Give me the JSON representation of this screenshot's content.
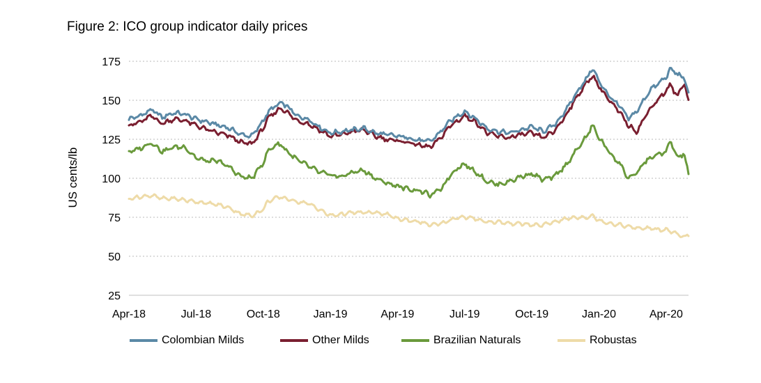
{
  "title": "Figure 2: ICO group indicator daily prices",
  "chart_data": {
    "type": "line",
    "ylabel": "US cents/lb",
    "ylim": [
      25,
      175
    ],
    "yticks": [
      25,
      50,
      75,
      100,
      125,
      150,
      175
    ],
    "xlim": [
      0,
      25
    ],
    "x_unit": "months since Apr-18",
    "xticks": [
      {
        "label": "Apr-18",
        "x": 0
      },
      {
        "label": "Jul-18",
        "x": 3
      },
      {
        "label": "Oct-18",
        "x": 6
      },
      {
        "label": "Jan-19",
        "x": 9
      },
      {
        "label": "Apr-19",
        "x": 12
      },
      {
        "label": "Jul-19",
        "x": 15
      },
      {
        "label": "Oct-19",
        "x": 18
      },
      {
        "label": "Jan-20",
        "x": 21
      },
      {
        "label": "Apr-20",
        "x": 24
      }
    ],
    "grid": true,
    "legend_position": "bottom",
    "series": [
      {
        "name": "Colombian Milds",
        "color": "#5b89a6",
        "points": [
          [
            0,
            138
          ],
          [
            0.5,
            140
          ],
          [
            1,
            144
          ],
          [
            1.5,
            139
          ],
          [
            2,
            142
          ],
          [
            2.5,
            141
          ],
          [
            3,
            138
          ],
          [
            3.5,
            136
          ],
          [
            4,
            134
          ],
          [
            4.5,
            132
          ],
          [
            5,
            128
          ],
          [
            5.5,
            127
          ],
          [
            6,
            137
          ],
          [
            6.2,
            142
          ],
          [
            6.5,
            146
          ],
          [
            6.8,
            148
          ],
          [
            7,
            147
          ],
          [
            7.5,
            140
          ],
          [
            8,
            138
          ],
          [
            8.5,
            133
          ],
          [
            9,
            129
          ],
          [
            9.5,
            130
          ],
          [
            10,
            131
          ],
          [
            10.5,
            132
          ],
          [
            11,
            129
          ],
          [
            11.5,
            128
          ],
          [
            12,
            127
          ],
          [
            12.5,
            126
          ],
          [
            13,
            124
          ],
          [
            13.5,
            124
          ],
          [
            14,
            131
          ],
          [
            14.3,
            136
          ],
          [
            14.7,
            140
          ],
          [
            15,
            143
          ],
          [
            15.5,
            138
          ],
          [
            16,
            132
          ],
          [
            16.5,
            130
          ],
          [
            17,
            129
          ],
          [
            17.5,
            131
          ],
          [
            18,
            133
          ],
          [
            18.5,
            130
          ],
          [
            19,
            134
          ],
          [
            19.5,
            143
          ],
          [
            20,
            155
          ],
          [
            20.5,
            165
          ],
          [
            20.7,
            171
          ],
          [
            21,
            162
          ],
          [
            21.5,
            152
          ],
          [
            22,
            145
          ],
          [
            22.3,
            138
          ],
          [
            22.7,
            143
          ],
          [
            23,
            150
          ],
          [
            23.3,
            157
          ],
          [
            23.6,
            160
          ],
          [
            24,
            165
          ],
          [
            24.2,
            170
          ],
          [
            24.5,
            167
          ],
          [
            24.8,
            164
          ],
          [
            25,
            155
          ]
        ]
      },
      {
        "name": "Other Milds",
        "color": "#7a1f30",
        "points": [
          [
            0,
            134
          ],
          [
            0.5,
            136
          ],
          [
            1,
            140
          ],
          [
            1.5,
            135
          ],
          [
            2,
            138
          ],
          [
            2.5,
            137
          ],
          [
            3,
            134
          ],
          [
            3.5,
            131
          ],
          [
            4,
            129
          ],
          [
            4.5,
            127
          ],
          [
            5,
            123
          ],
          [
            5.5,
            122
          ],
          [
            6,
            132
          ],
          [
            6.2,
            138
          ],
          [
            6.5,
            142
          ],
          [
            6.8,
            145
          ],
          [
            7,
            143
          ],
          [
            7.5,
            137
          ],
          [
            8,
            135
          ],
          [
            8.5,
            131
          ],
          [
            9,
            127
          ],
          [
            9.5,
            128
          ],
          [
            10,
            130
          ],
          [
            10.5,
            131
          ],
          [
            11,
            127
          ],
          [
            11.5,
            125
          ],
          [
            12,
            124
          ],
          [
            12.5,
            123
          ],
          [
            13,
            121
          ],
          [
            13.5,
            120
          ],
          [
            14,
            127
          ],
          [
            14.3,
            133
          ],
          [
            14.7,
            137
          ],
          [
            15,
            140
          ],
          [
            15.5,
            136
          ],
          [
            16,
            129
          ],
          [
            16.5,
            127
          ],
          [
            17,
            126
          ],
          [
            17.5,
            128
          ],
          [
            18,
            129
          ],
          [
            18.5,
            126
          ],
          [
            19,
            130
          ],
          [
            19.5,
            140
          ],
          [
            20,
            152
          ],
          [
            20.5,
            162
          ],
          [
            20.7,
            166
          ],
          [
            21,
            159
          ],
          [
            21.5,
            149
          ],
          [
            22,
            141
          ],
          [
            22.3,
            134
          ],
          [
            22.7,
            130
          ],
          [
            23,
            138
          ],
          [
            23.3,
            145
          ],
          [
            23.6,
            150
          ],
          [
            24,
            156
          ],
          [
            24.2,
            160
          ],
          [
            24.5,
            152
          ],
          [
            24.8,
            162
          ],
          [
            25,
            149
          ]
        ]
      },
      {
        "name": "Brazilian Naturals",
        "color": "#6a9a3c",
        "points": [
          [
            0,
            117
          ],
          [
            0.5,
            119
          ],
          [
            1,
            123
          ],
          [
            1.5,
            117
          ],
          [
            2,
            120
          ],
          [
            2.5,
            120
          ],
          [
            3,
            113
          ],
          [
            3.5,
            111
          ],
          [
            4,
            111
          ],
          [
            4.5,
            107
          ],
          [
            5,
            101
          ],
          [
            5.5,
            100
          ],
          [
            6,
            110
          ],
          [
            6.2,
            117
          ],
          [
            6.5,
            121
          ],
          [
            6.8,
            122
          ],
          [
            7,
            118
          ],
          [
            7.5,
            112
          ],
          [
            8,
            108
          ],
          [
            8.5,
            104
          ],
          [
            9,
            102
          ],
          [
            9.5,
            101
          ],
          [
            10,
            104
          ],
          [
            10.5,
            105
          ],
          [
            11,
            100
          ],
          [
            11.5,
            97
          ],
          [
            12,
            95
          ],
          [
            12.5,
            93
          ],
          [
            13,
            92
          ],
          [
            13.5,
            89
          ],
          [
            14,
            94
          ],
          [
            14.3,
            101
          ],
          [
            14.7,
            107
          ],
          [
            15,
            109
          ],
          [
            15.5,
            104
          ],
          [
            16,
            98
          ],
          [
            16.5,
            96
          ],
          [
            17,
            98
          ],
          [
            17.5,
            101
          ],
          [
            18,
            103
          ],
          [
            18.5,
            99
          ],
          [
            19,
            101
          ],
          [
            19.5,
            108
          ],
          [
            20,
            118
          ],
          [
            20.5,
            128
          ],
          [
            20.7,
            134
          ],
          [
            21,
            126
          ],
          [
            21.5,
            116
          ],
          [
            22,
            108
          ],
          [
            22.3,
            100
          ],
          [
            22.7,
            103
          ],
          [
            23,
            110
          ],
          [
            23.3,
            113
          ],
          [
            23.6,
            115
          ],
          [
            24,
            117
          ],
          [
            24.2,
            124
          ],
          [
            24.5,
            113
          ],
          [
            24.8,
            116
          ],
          [
            25,
            102
          ]
        ]
      },
      {
        "name": "Robustas",
        "color": "#eedba8",
        "points": [
          [
            0,
            87
          ],
          [
            0.5,
            88
          ],
          [
            1,
            89
          ],
          [
            1.5,
            87
          ],
          [
            2,
            87
          ],
          [
            2.5,
            86
          ],
          [
            3,
            85
          ],
          [
            3.5,
            84
          ],
          [
            4,
            83
          ],
          [
            4.5,
            81
          ],
          [
            5,
            77
          ],
          [
            5.5,
            76
          ],
          [
            6,
            80
          ],
          [
            6.2,
            85
          ],
          [
            6.5,
            87
          ],
          [
            6.8,
            88
          ],
          [
            7,
            87
          ],
          [
            7.5,
            85
          ],
          [
            8,
            84
          ],
          [
            8.5,
            80
          ],
          [
            9,
            76
          ],
          [
            9.5,
            77
          ],
          [
            10,
            78
          ],
          [
            10.5,
            78
          ],
          [
            11,
            78
          ],
          [
            11.5,
            77
          ],
          [
            12,
            74
          ],
          [
            12.5,
            73
          ],
          [
            13,
            72
          ],
          [
            13.5,
            70
          ],
          [
            14,
            71
          ],
          [
            14.3,
            73
          ],
          [
            14.7,
            75
          ],
          [
            15,
            75
          ],
          [
            15.5,
            74
          ],
          [
            16,
            72
          ],
          [
            16.5,
            72
          ],
          [
            17,
            71
          ],
          [
            17.5,
            71
          ],
          [
            18,
            70
          ],
          [
            18.5,
            70
          ],
          [
            19,
            72
          ],
          [
            19.5,
            74
          ],
          [
            20,
            75
          ],
          [
            20.5,
            75
          ],
          [
            20.7,
            76
          ],
          [
            21,
            73
          ],
          [
            21.5,
            71
          ],
          [
            22,
            70
          ],
          [
            22.3,
            69
          ],
          [
            22.7,
            68
          ],
          [
            23,
            68
          ],
          [
            23.3,
            68
          ],
          [
            23.6,
            67
          ],
          [
            24,
            67
          ],
          [
            24.2,
            66
          ],
          [
            24.5,
            64
          ],
          [
            24.8,
            62
          ],
          [
            25,
            64
          ]
        ]
      }
    ]
  }
}
